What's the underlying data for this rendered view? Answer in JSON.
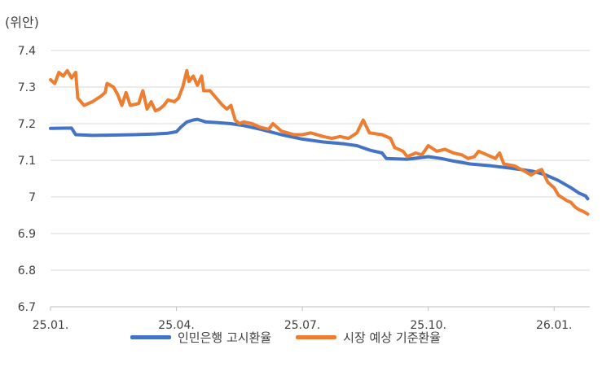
{
  "chart_data": {
    "type": "line",
    "unit_label": "(위안)",
    "ylim": [
      6.7,
      7.4
    ],
    "y_ticks": [
      "7.4",
      "7.3",
      "7.2",
      "7.1",
      "7",
      "6.9",
      "6.8",
      "6.7"
    ],
    "x_ticks": [
      "25.01.",
      "25.04.",
      "25.07.",
      "25.10.",
      "26.01."
    ],
    "x_tick_months": [
      0,
      3,
      6,
      9,
      12
    ],
    "x_range_months": [
      0,
      12.85
    ],
    "grid": true,
    "legend_position": "bottom",
    "series": [
      {
        "name": "인민은행 고시환율",
        "color": "#4472C4",
        "points": [
          [
            0,
            7.187
          ],
          [
            0.5,
            7.188
          ],
          [
            0.6,
            7.17
          ],
          [
            1,
            7.168
          ],
          [
            1.5,
            7.169
          ],
          [
            2,
            7.17
          ],
          [
            2.5,
            7.172
          ],
          [
            2.8,
            7.174
          ],
          [
            3,
            7.178
          ],
          [
            3.1,
            7.19
          ],
          [
            3.25,
            7.205
          ],
          [
            3.4,
            7.21
          ],
          [
            3.5,
            7.212
          ],
          [
            3.7,
            7.205
          ],
          [
            4,
            7.203
          ],
          [
            4.3,
            7.2
          ],
          [
            4.6,
            7.195
          ],
          [
            5,
            7.185
          ],
          [
            5.5,
            7.17
          ],
          [
            6,
            7.158
          ],
          [
            6.5,
            7.15
          ],
          [
            7,
            7.145
          ],
          [
            7.3,
            7.14
          ],
          [
            7.6,
            7.128
          ],
          [
            7.9,
            7.12
          ],
          [
            8,
            7.105
          ],
          [
            8.5,
            7.103
          ],
          [
            9,
            7.11
          ],
          [
            9.3,
            7.105
          ],
          [
            9.6,
            7.098
          ],
          [
            10,
            7.09
          ],
          [
            10.5,
            7.085
          ],
          [
            11,
            7.078
          ],
          [
            11.5,
            7.07
          ],
          [
            11.8,
            7.06
          ],
          [
            12.1,
            7.045
          ],
          [
            12.4,
            7.025
          ],
          [
            12.6,
            7.01
          ],
          [
            12.75,
            7.003
          ],
          [
            12.8,
            6.995
          ]
        ]
      },
      {
        "name": "시장 예상 기준환율",
        "color": "#ED7D31",
        "points": [
          [
            0,
            7.32
          ],
          [
            0.1,
            7.31
          ],
          [
            0.2,
            7.34
          ],
          [
            0.3,
            7.33
          ],
          [
            0.4,
            7.345
          ],
          [
            0.5,
            7.325
          ],
          [
            0.6,
            7.34
          ],
          [
            0.65,
            7.27
          ],
          [
            0.8,
            7.25
          ],
          [
            1,
            7.26
          ],
          [
            1.2,
            7.275
          ],
          [
            1.3,
            7.285
          ],
          [
            1.35,
            7.31
          ],
          [
            1.5,
            7.3
          ],
          [
            1.6,
            7.28
          ],
          [
            1.7,
            7.25
          ],
          [
            1.8,
            7.285
          ],
          [
            1.9,
            7.25
          ],
          [
            2.1,
            7.255
          ],
          [
            2.2,
            7.29
          ],
          [
            2.3,
            7.24
          ],
          [
            2.4,
            7.26
          ],
          [
            2.5,
            7.235
          ],
          [
            2.6,
            7.24
          ],
          [
            2.7,
            7.25
          ],
          [
            2.8,
            7.265
          ],
          [
            2.95,
            7.26
          ],
          [
            3.05,
            7.27
          ],
          [
            3.15,
            7.3
          ],
          [
            3.25,
            7.345
          ],
          [
            3.3,
            7.315
          ],
          [
            3.4,
            7.33
          ],
          [
            3.5,
            7.305
          ],
          [
            3.6,
            7.33
          ],
          [
            3.65,
            7.29
          ],
          [
            3.8,
            7.29
          ],
          [
            3.95,
            7.27
          ],
          [
            4.1,
            7.25
          ],
          [
            4.2,
            7.24
          ],
          [
            4.3,
            7.25
          ],
          [
            4.4,
            7.21
          ],
          [
            4.5,
            7.2
          ],
          [
            4.6,
            7.205
          ],
          [
            4.8,
            7.2
          ],
          [
            5,
            7.19
          ],
          [
            5.2,
            7.185
          ],
          [
            5.3,
            7.2
          ],
          [
            5.5,
            7.18
          ],
          [
            5.8,
            7.17
          ],
          [
            6,
            7.17
          ],
          [
            6.2,
            7.175
          ],
          [
            6.5,
            7.165
          ],
          [
            6.7,
            7.16
          ],
          [
            6.9,
            7.165
          ],
          [
            7.1,
            7.16
          ],
          [
            7.3,
            7.175
          ],
          [
            7.45,
            7.21
          ],
          [
            7.6,
            7.175
          ],
          [
            7.9,
            7.17
          ],
          [
            8.1,
            7.16
          ],
          [
            8.2,
            7.135
          ],
          [
            8.4,
            7.125
          ],
          [
            8.5,
            7.11
          ],
          [
            8.7,
            7.12
          ],
          [
            8.85,
            7.115
          ],
          [
            9,
            7.14
          ],
          [
            9.2,
            7.125
          ],
          [
            9.4,
            7.13
          ],
          [
            9.6,
            7.12
          ],
          [
            9.8,
            7.115
          ],
          [
            9.95,
            7.105
          ],
          [
            10.1,
            7.11
          ],
          [
            10.2,
            7.125
          ],
          [
            10.4,
            7.115
          ],
          [
            10.6,
            7.105
          ],
          [
            10.7,
            7.12
          ],
          [
            10.8,
            7.09
          ],
          [
            11.05,
            7.085
          ],
          [
            11.3,
            7.07
          ],
          [
            11.45,
            7.06
          ],
          [
            11.6,
            7.07
          ],
          [
            11.7,
            7.075
          ],
          [
            11.85,
            7.04
          ],
          [
            12,
            7.025
          ],
          [
            12.1,
            7.005
          ],
          [
            12.3,
            6.99
          ],
          [
            12.4,
            6.985
          ],
          [
            12.5,
            6.972
          ],
          [
            12.6,
            6.965
          ],
          [
            12.7,
            6.96
          ],
          [
            12.8,
            6.953
          ]
        ]
      }
    ]
  }
}
